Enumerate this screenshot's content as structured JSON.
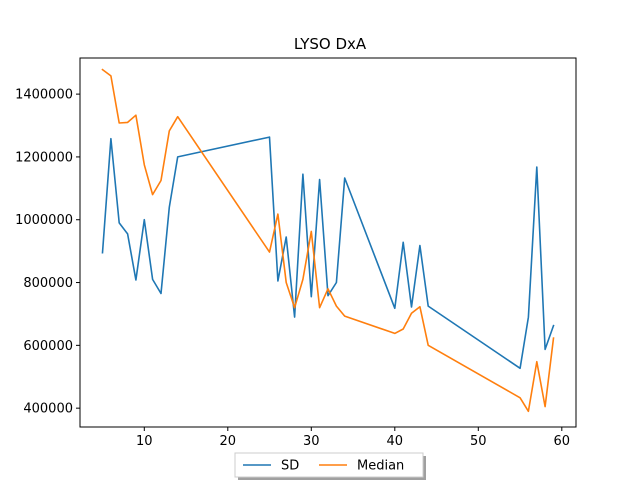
{
  "chart_data": {
    "type": "line",
    "title": "LYSO DxA",
    "xlabel": "",
    "ylabel": "",
    "xlim": [
      2.3,
      61.7
    ],
    "ylim": [
      340000,
      1515000
    ],
    "xticks": [
      10,
      20,
      30,
      40,
      50,
      60
    ],
    "yticks": [
      400000,
      600000,
      800000,
      1000000,
      1200000,
      1400000
    ],
    "grid": false,
    "legend_position": "bottom-center",
    "series": [
      {
        "name": "SD",
        "color": "#1f77b4",
        "x": [
          5,
          6,
          7,
          8,
          9,
          10,
          11,
          12,
          13,
          14,
          25,
          26,
          27,
          28,
          29,
          30,
          31,
          32,
          33,
          34,
          40,
          41,
          42,
          43,
          44,
          55,
          56,
          57,
          58,
          59
        ],
        "y": [
          895000,
          1258000,
          990000,
          955000,
          808000,
          1000000,
          810000,
          765000,
          1040000,
          1200000,
          1263000,
          805000,
          945000,
          690000,
          1145000,
          755000,
          1128000,
          758000,
          800000,
          1133000,
          718000,
          928000,
          722000,
          918000,
          725000,
          527000,
          690000,
          1168000,
          587000,
          663000
        ]
      },
      {
        "name": "Median",
        "color": "#ff7f0e",
        "x": [
          5,
          6,
          7,
          8,
          9,
          10,
          11,
          12,
          13,
          14,
          25,
          26,
          27,
          28,
          29,
          30,
          31,
          32,
          33,
          34,
          40,
          41,
          42,
          43,
          44,
          55,
          56,
          57,
          58,
          59
        ],
        "y": [
          1478000,
          1458000,
          1308000,
          1310000,
          1333000,
          1175000,
          1080000,
          1125000,
          1283000,
          1328000,
          897000,
          1018000,
          800000,
          720000,
          810000,
          963000,
          720000,
          780000,
          725000,
          693000,
          638000,
          652000,
          702000,
          723000,
          600000,
          433000,
          390000,
          548000,
          405000,
          623000
        ]
      }
    ]
  }
}
